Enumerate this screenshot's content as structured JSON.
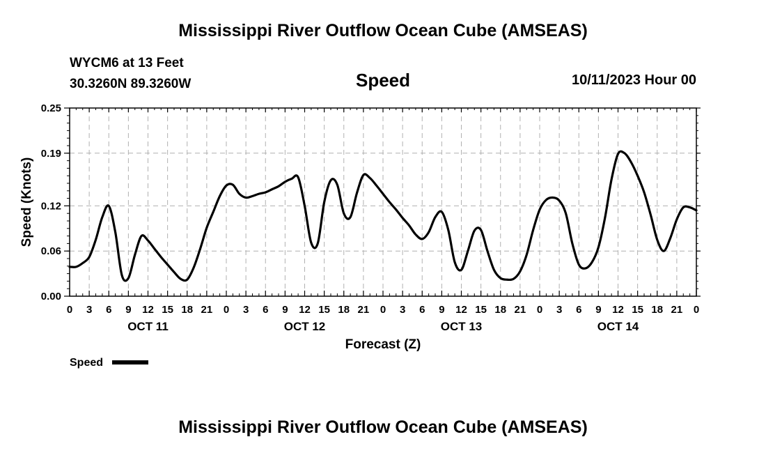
{
  "header": {
    "title": "Mississippi River Outflow Ocean Cube (AMSEAS)",
    "station": "WYCM6 at 13 Feet",
    "coords": "30.3260N  89.3260W",
    "datetime": "10/11/2023 Hour 00"
  },
  "footer": {
    "title": "Mississippi River Outflow Ocean Cube (AMSEAS)"
  },
  "chart_data": {
    "type": "line",
    "title": "Speed",
    "xlabel": "Forecast (Z)",
    "ylabel": "Speed (Knots)",
    "xlim": [
      0,
      96
    ],
    "ylim": [
      0,
      0.25
    ],
    "yticks": [
      0.0,
      0.06,
      0.12,
      0.19,
      0.25
    ],
    "ytick_labels": [
      "0.00",
      "0.06",
      "0.12",
      "0.19",
      "0.25"
    ],
    "xtick_labels": [
      "0",
      "3",
      "6",
      "9",
      "12",
      "15",
      "18",
      "21",
      "0",
      "3",
      "6",
      "9",
      "12",
      "15",
      "18",
      "21",
      "0",
      "3",
      "6",
      "9",
      "12",
      "15",
      "18",
      "21",
      "0",
      "3",
      "6",
      "9",
      "12",
      "15",
      "18",
      "21",
      "0"
    ],
    "day_labels": [
      {
        "label": "OCT 11",
        "hour": 12
      },
      {
        "label": "OCT 12",
        "hour": 36
      },
      {
        "label": "OCT 13",
        "hour": 60
      },
      {
        "label": "OCT 14",
        "hour": 84
      }
    ],
    "grid": true,
    "legend": [
      {
        "name": "Speed",
        "color": "#000000"
      }
    ],
    "series": [
      {
        "name": "Speed",
        "color": "#000000",
        "x": [
          0,
          1,
          2,
          3,
          4,
          5,
          6,
          7,
          8,
          9,
          10,
          11,
          12,
          13,
          14,
          15,
          16,
          17,
          18,
          19,
          20,
          21,
          22,
          23,
          24,
          25,
          26,
          27,
          28,
          29,
          30,
          31,
          32,
          33,
          34,
          35,
          36,
          37,
          38,
          39,
          40,
          41,
          42,
          43,
          44,
          45,
          46,
          47,
          48,
          49,
          50,
          51,
          52,
          53,
          54,
          55,
          56,
          57,
          58,
          59,
          60,
          61,
          62,
          63,
          64,
          65,
          66,
          67,
          68,
          69,
          70,
          71,
          72,
          73,
          74,
          75,
          76,
          77,
          78,
          79,
          80,
          81,
          82,
          83,
          84,
          85,
          86,
          87,
          88,
          89,
          90,
          91,
          92,
          93,
          94,
          95,
          96
        ],
        "values": [
          0.039,
          0.039,
          0.044,
          0.052,
          0.075,
          0.105,
          0.12,
          0.085,
          0.028,
          0.024,
          0.055,
          0.08,
          0.074,
          0.063,
          0.052,
          0.042,
          0.032,
          0.023,
          0.022,
          0.038,
          0.063,
          0.091,
          0.112,
          0.133,
          0.147,
          0.148,
          0.136,
          0.131,
          0.133,
          0.136,
          0.138,
          0.142,
          0.146,
          0.152,
          0.156,
          0.158,
          0.12,
          0.071,
          0.07,
          0.125,
          0.154,
          0.148,
          0.11,
          0.105,
          0.137,
          0.161,
          0.157,
          0.147,
          0.136,
          0.125,
          0.115,
          0.104,
          0.094,
          0.082,
          0.076,
          0.085,
          0.105,
          0.112,
          0.088,
          0.045,
          0.035,
          0.06,
          0.087,
          0.088,
          0.06,
          0.035,
          0.024,
          0.022,
          0.023,
          0.033,
          0.055,
          0.088,
          0.115,
          0.128,
          0.131,
          0.127,
          0.11,
          0.07,
          0.042,
          0.037,
          0.045,
          0.065,
          0.104,
          0.155,
          0.189,
          0.19,
          0.178,
          0.16,
          0.138,
          0.108,
          0.075,
          0.06,
          0.077,
          0.102,
          0.118,
          0.118,
          0.114
        ]
      }
    ]
  }
}
